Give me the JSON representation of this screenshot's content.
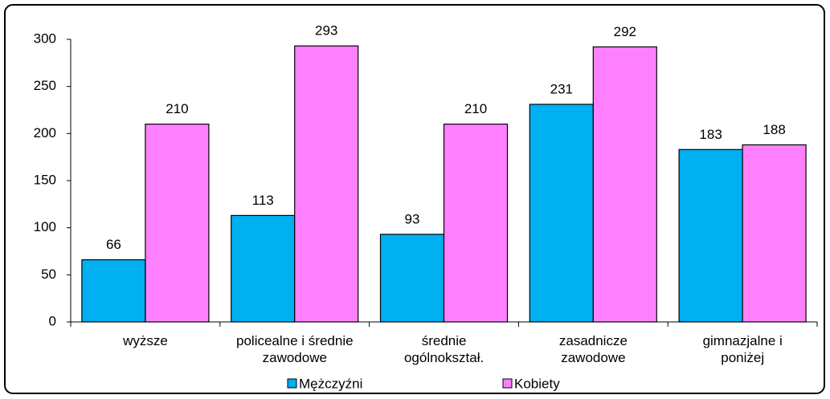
{
  "chart_data": {
    "type": "bar",
    "categories": [
      "wyższe",
      "policealne i średnie\nzawodowe",
      "średnie\nogólnokształ.",
      "zasadnicze\nzawodowe",
      "gimnazjalne i\nponiżej"
    ],
    "series": [
      {
        "name": "Mężczyźni",
        "color": "#00b0f0",
        "values": [
          66,
          113,
          93,
          231,
          183
        ]
      },
      {
        "name": "Kobiety",
        "color": "#ff80ff",
        "values": [
          210,
          293,
          210,
          292,
          188
        ]
      }
    ],
    "ylim": [
      0,
      300
    ],
    "yticks": [
      0,
      50,
      100,
      150,
      200,
      250,
      300
    ],
    "legend": "bottom"
  }
}
